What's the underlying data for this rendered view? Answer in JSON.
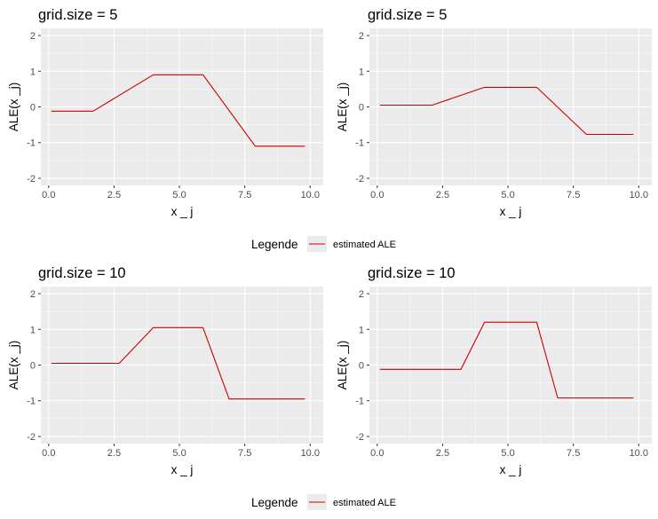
{
  "colors": {
    "panel_bg": "#ebebeb",
    "grid_major": "#ffffff",
    "line": "#cc0000"
  },
  "legend": {
    "title": "Legende",
    "item": "estimated ALE"
  },
  "chart_data": [
    {
      "type": "line",
      "title": "grid.size = 5",
      "xlabel": "x _ j",
      "ylabel": "ALE(x _j)",
      "xlim": [
        -0.3,
        10.5
      ],
      "ylim": [
        -2.2,
        2.2
      ],
      "x_ticks": [
        0,
        2.5,
        5,
        7.5,
        10
      ],
      "x_tick_labels": [
        "0.0",
        "2.5",
        "5.0",
        "7.5",
        "10.0"
      ],
      "y_ticks": [
        -2,
        -1,
        0,
        1,
        2
      ],
      "y_tick_labels": [
        "-2",
        "-1",
        "0",
        "1",
        "2"
      ],
      "grid": true,
      "series": [
        {
          "name": "estimated ALE",
          "x": [
            0.1,
            1.7,
            4.0,
            5.9,
            7.9,
            9.8
          ],
          "y": [
            -0.12,
            -0.12,
            0.9,
            0.9,
            -1.1,
            -1.1
          ]
        }
      ]
    },
    {
      "type": "line",
      "title": "grid.size = 5",
      "xlabel": "x _ j",
      "ylabel": "ALE(x _j)",
      "xlim": [
        -0.3,
        10.5
      ],
      "ylim": [
        -2.2,
        2.2
      ],
      "x_ticks": [
        0,
        2.5,
        5,
        7.5,
        10
      ],
      "x_tick_labels": [
        "0.0",
        "2.5",
        "5.0",
        "7.5",
        "10.0"
      ],
      "y_ticks": [
        -2,
        -1,
        0,
        1,
        2
      ],
      "y_tick_labels": [
        "-2",
        "-1",
        "0",
        "1",
        "2"
      ],
      "grid": true,
      "series": [
        {
          "name": "estimated ALE",
          "x": [
            0.1,
            2.1,
            4.1,
            6.1,
            8.0,
            9.8
          ],
          "y": [
            0.05,
            0.05,
            0.55,
            0.55,
            -0.77,
            -0.77
          ]
        }
      ]
    },
    {
      "type": "line",
      "title": "grid.size = 10",
      "xlabel": "x _ j",
      "ylabel": "ALE(x _j)",
      "xlim": [
        -0.3,
        10.5
      ],
      "ylim": [
        -2.2,
        2.2
      ],
      "x_ticks": [
        0,
        2.5,
        5,
        7.5,
        10
      ],
      "x_tick_labels": [
        "0.0",
        "2.5",
        "5.0",
        "7.5",
        "10.0"
      ],
      "y_ticks": [
        -2,
        -1,
        0,
        1,
        2
      ],
      "y_tick_labels": [
        "-2",
        "-1",
        "0",
        "1",
        "2"
      ],
      "grid": true,
      "series": [
        {
          "name": "estimated ALE",
          "x": [
            0.1,
            2.7,
            4.0,
            5.9,
            6.9,
            9.8
          ],
          "y": [
            0.05,
            0.05,
            1.05,
            1.05,
            -0.95,
            -0.95
          ]
        }
      ]
    },
    {
      "type": "line",
      "title": "grid.size = 10",
      "xlabel": "x _ j",
      "ylabel": "ALE(x _j)",
      "xlim": [
        -0.3,
        10.5
      ],
      "ylim": [
        -2.2,
        2.2
      ],
      "x_ticks": [
        0,
        2.5,
        5,
        7.5,
        10
      ],
      "x_tick_labels": [
        "0.0",
        "2.5",
        "5.0",
        "7.5",
        "10.0"
      ],
      "y_ticks": [
        -2,
        -1,
        0,
        1,
        2
      ],
      "y_tick_labels": [
        "-2",
        "-1",
        "0",
        "1",
        "2"
      ],
      "grid": true,
      "series": [
        {
          "name": "estimated ALE",
          "x": [
            0.1,
            3.2,
            4.1,
            6.1,
            6.9,
            9.8
          ],
          "y": [
            -0.12,
            -0.12,
            1.2,
            1.2,
            -0.92,
            -0.92
          ]
        }
      ]
    }
  ]
}
